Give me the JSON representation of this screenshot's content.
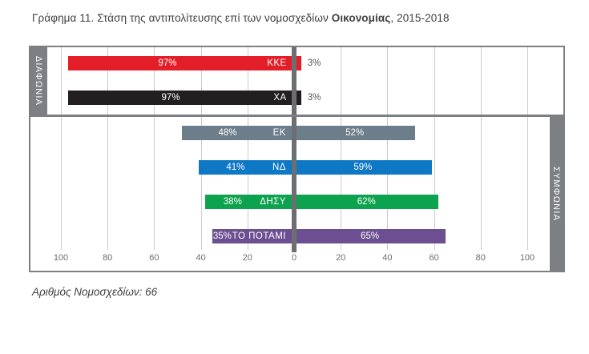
{
  "figure": {
    "title_prefix": "Γράφημα 11. Στάση της αντιπολίτευσης επί των νομοσχεδίων ",
    "title_bold": "Οικονομίας",
    "title_suffix": ", 2015-2018",
    "footnote": "Αριθμός Νομοσχεδίων: 66"
  },
  "chart_data": {
    "type": "bar",
    "variant": "diverging-horizontal",
    "title": "Γράφημα 11. Στάση της αντιπολίτευσης επί των νομοσχεδίων Οικονομίας, 2015-2018",
    "left_label": "ΔΙΑΦΩΝΙΑ",
    "right_label": "ΣΥΜΦΩΝΙΑ",
    "unit": "%",
    "bills_count": 66,
    "x_range": [
      -100,
      100
    ],
    "x_ticks": [
      -100,
      -80,
      -60,
      -40,
      -20,
      0,
      20,
      40,
      60,
      80,
      100
    ],
    "x_tick_labels": [
      "100",
      "80",
      "60",
      "40",
      "20",
      "0",
      "20",
      "40",
      "60",
      "80",
      "100"
    ],
    "grid": true,
    "panels": [
      {
        "name": "disagreement-top",
        "rows": [
          {
            "party": "ΚΚΕ",
            "disagree": 97,
            "agree": 3,
            "color": "#e31e28",
            "agree_label_outside": true
          },
          {
            "party": "ΧΑ",
            "disagree": 97,
            "agree": 3,
            "color": "#231f20",
            "agree_label_outside": true
          }
        ]
      },
      {
        "name": "agreement-bottom",
        "rows": [
          {
            "party": "ΕΚ",
            "disagree": 48,
            "agree": 52,
            "color": "#6d7e8b"
          },
          {
            "party": "ΝΔ",
            "disagree": 41,
            "agree": 59,
            "color": "#0f78c4"
          },
          {
            "party": "ΔΗΣΥ",
            "disagree": 38,
            "agree": 62,
            "color": "#0da24e"
          },
          {
            "party": "ΤΟ ΠΟΤΑΜΙ",
            "disagree": 35,
            "agree": 65,
            "color": "#6b4f90"
          }
        ]
      }
    ],
    "colors": {
      "zero_line": "#6d6e71",
      "gridline": "#c9cbcd",
      "frame": "#7d7f83",
      "strip_background": "#7d7f83",
      "strip_text": "#ffffff",
      "tick_text": "#6d6e71",
      "title_text": "#404041",
      "outside_value_text": "#55565a"
    }
  }
}
